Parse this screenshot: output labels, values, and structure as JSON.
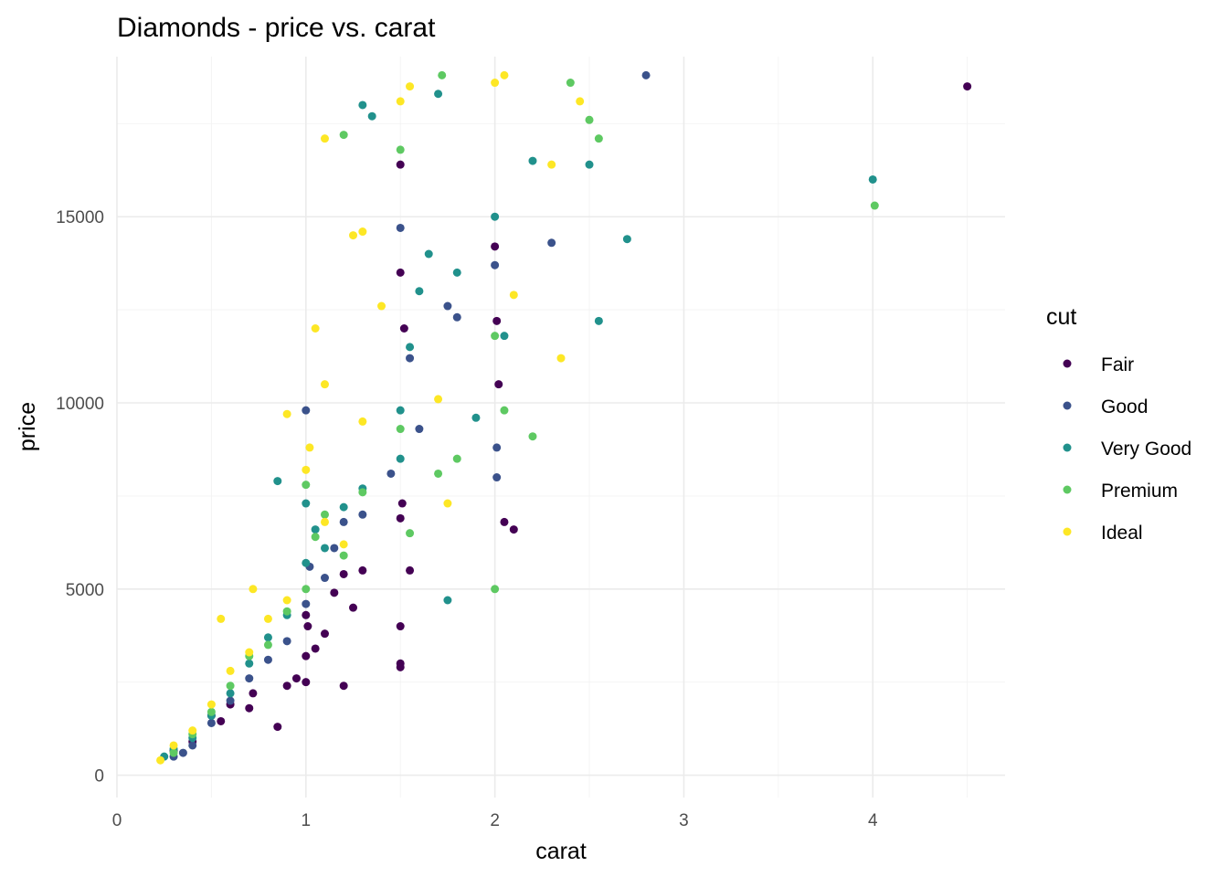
{
  "chart_data": {
    "type": "scatter",
    "title": "Diamonds - price vs. carat",
    "xlabel": "carat",
    "ylabel": "price",
    "xlim": [
      0,
      4.7
    ],
    "ylim": [
      -600,
      19300
    ],
    "x_ticks": [
      0,
      1,
      2,
      3,
      4
    ],
    "y_ticks": [
      0,
      5000,
      10000,
      15000
    ],
    "grid": true,
    "legend": {
      "title": "cut",
      "placement": "right"
    },
    "series": [
      {
        "name": "Fair",
        "color": "#440154",
        "points": [
          [
            0.3,
            650
          ],
          [
            0.4,
            900
          ],
          [
            0.5,
            1600
          ],
          [
            0.55,
            1450
          ],
          [
            0.6,
            1900
          ],
          [
            0.7,
            1800
          ],
          [
            0.72,
            2200
          ],
          [
            0.85,
            1300
          ],
          [
            0.9,
            2400
          ],
          [
            0.95,
            2600
          ],
          [
            1.0,
            2500
          ],
          [
            1.0,
            3200
          ],
          [
            1.0,
            4300
          ],
          [
            1.01,
            4000
          ],
          [
            1.05,
            3400
          ],
          [
            1.1,
            3800
          ],
          [
            1.15,
            4900
          ],
          [
            1.2,
            2400
          ],
          [
            1.2,
            5400
          ],
          [
            1.25,
            4500
          ],
          [
            1.3,
            5500
          ],
          [
            1.5,
            4000
          ],
          [
            1.5,
            3000
          ],
          [
            1.5,
            2900
          ],
          [
            1.5,
            6900
          ],
          [
            1.51,
            7300
          ],
          [
            1.5,
            13500
          ],
          [
            1.52,
            12000
          ],
          [
            1.5,
            16400
          ],
          [
            1.55,
            5500
          ],
          [
            2.0,
            14200
          ],
          [
            2.01,
            12200
          ],
          [
            2.02,
            10500
          ],
          [
            2.05,
            6800
          ],
          [
            2.1,
            6600
          ],
          [
            4.5,
            18500
          ]
        ]
      },
      {
        "name": "Good",
        "color": "#3b528b",
        "points": [
          [
            0.3,
            500
          ],
          [
            0.35,
            600
          ],
          [
            0.4,
            800
          ],
          [
            0.5,
            1400
          ],
          [
            0.6,
            2000
          ],
          [
            0.7,
            2600
          ],
          [
            0.8,
            3100
          ],
          [
            0.9,
            3600
          ],
          [
            1.0,
            9800
          ],
          [
            1.0,
            4600
          ],
          [
            1.02,
            5600
          ],
          [
            1.1,
            5300
          ],
          [
            1.15,
            6100
          ],
          [
            1.2,
            6800
          ],
          [
            1.3,
            7000
          ],
          [
            1.45,
            8100
          ],
          [
            1.5,
            14700
          ],
          [
            1.55,
            11200
          ],
          [
            1.6,
            9300
          ],
          [
            1.75,
            12600
          ],
          [
            1.8,
            12300
          ],
          [
            2.0,
            13700
          ],
          [
            2.01,
            8800
          ],
          [
            2.01,
            8000
          ],
          [
            2.3,
            14300
          ],
          [
            2.8,
            18800
          ]
        ]
      },
      {
        "name": "Very Good",
        "color": "#21918c",
        "points": [
          [
            0.25,
            500
          ],
          [
            0.3,
            700
          ],
          [
            0.4,
            1000
          ],
          [
            0.5,
            1600
          ],
          [
            0.6,
            2200
          ],
          [
            0.7,
            3000
          ],
          [
            0.8,
            3700
          ],
          [
            0.85,
            7900
          ],
          [
            0.9,
            4300
          ],
          [
            1.0,
            5700
          ],
          [
            1.0,
            7300
          ],
          [
            1.05,
            6600
          ],
          [
            1.1,
            6100
          ],
          [
            1.2,
            7200
          ],
          [
            1.3,
            7700
          ],
          [
            1.3,
            18000
          ],
          [
            1.35,
            17700
          ],
          [
            1.5,
            8500
          ],
          [
            1.5,
            9800
          ],
          [
            1.55,
            11500
          ],
          [
            1.6,
            13000
          ],
          [
            1.65,
            14000
          ],
          [
            1.7,
            18300
          ],
          [
            1.75,
            4700
          ],
          [
            1.8,
            13500
          ],
          [
            1.9,
            9600
          ],
          [
            2.0,
            15000
          ],
          [
            2.05,
            11800
          ],
          [
            2.2,
            16500
          ],
          [
            2.5,
            16400
          ],
          [
            2.55,
            12200
          ],
          [
            2.7,
            14400
          ],
          [
            4.0,
            16000
          ]
        ]
      },
      {
        "name": "Premium",
        "color": "#5ec962",
        "points": [
          [
            0.3,
            600
          ],
          [
            0.4,
            1100
          ],
          [
            0.5,
            1700
          ],
          [
            0.6,
            2400
          ],
          [
            0.7,
            3200
          ],
          [
            0.8,
            3500
          ],
          [
            0.9,
            4400
          ],
          [
            1.0,
            5000
          ],
          [
            1.0,
            7800
          ],
          [
            1.05,
            6400
          ],
          [
            1.1,
            7000
          ],
          [
            1.2,
            5900
          ],
          [
            1.2,
            17200
          ],
          [
            1.3,
            7600
          ],
          [
            1.5,
            9300
          ],
          [
            1.5,
            16800
          ],
          [
            1.55,
            6500
          ],
          [
            1.7,
            8100
          ],
          [
            1.72,
            18800
          ],
          [
            1.8,
            8500
          ],
          [
            2.0,
            5000
          ],
          [
            2.0,
            11800
          ],
          [
            2.05,
            9800
          ],
          [
            2.2,
            9100
          ],
          [
            2.4,
            18600
          ],
          [
            2.5,
            17600
          ],
          [
            2.55,
            17100
          ],
          [
            4.01,
            15300
          ]
        ]
      },
      {
        "name": "Ideal",
        "color": "#fde725",
        "points": [
          [
            0.23,
            400
          ],
          [
            0.3,
            800
          ],
          [
            0.4,
            1200
          ],
          [
            0.5,
            1900
          ],
          [
            0.55,
            4200
          ],
          [
            0.6,
            2800
          ],
          [
            0.7,
            3300
          ],
          [
            0.72,
            5000
          ],
          [
            0.8,
            4200
          ],
          [
            0.9,
            4700
          ],
          [
            0.9,
            9700
          ],
          [
            1.0,
            8200
          ],
          [
            1.02,
            8800
          ],
          [
            1.05,
            12000
          ],
          [
            1.1,
            6800
          ],
          [
            1.1,
            10500
          ],
          [
            1.1,
            17100
          ],
          [
            1.2,
            6200
          ],
          [
            1.25,
            14500
          ],
          [
            1.3,
            9500
          ],
          [
            1.3,
            14600
          ],
          [
            1.4,
            12600
          ],
          [
            1.5,
            18100
          ],
          [
            1.55,
            18500
          ],
          [
            1.7,
            10100
          ],
          [
            1.75,
            7300
          ],
          [
            2.0,
            18600
          ],
          [
            2.05,
            18800
          ],
          [
            2.1,
            12900
          ],
          [
            2.3,
            16400
          ],
          [
            2.35,
            11200
          ],
          [
            2.45,
            18100
          ]
        ]
      }
    ]
  }
}
